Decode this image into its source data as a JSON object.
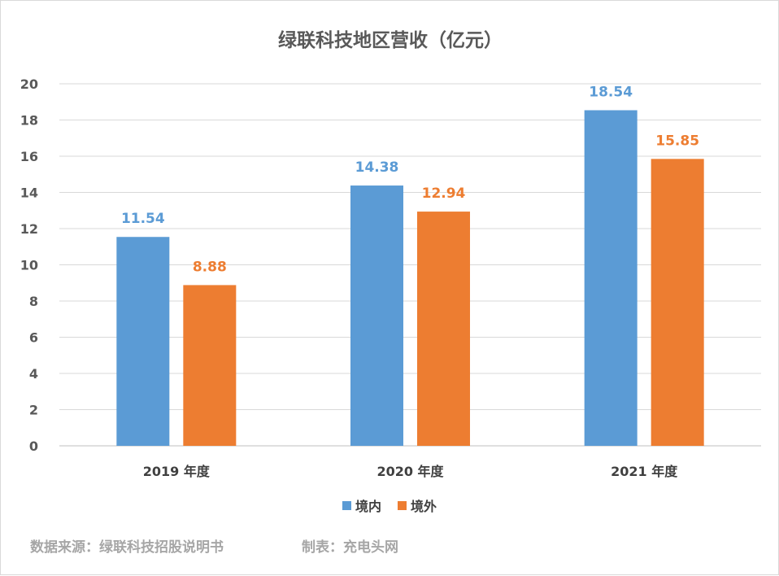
{
  "chart_data": {
    "type": "bar",
    "title": "绿联科技地区营收（亿元）",
    "categories": [
      "2019 年度",
      "2020 年度",
      "2021 年度"
    ],
    "series": [
      {
        "name": "境内",
        "values": [
          11.54,
          14.38,
          18.54
        ],
        "labels": [
          "11.54",
          "14.38",
          "18.54"
        ],
        "color": "#5b9bd5",
        "label_color": "#5b9bd5"
      },
      {
        "name": "境外",
        "values": [
          8.88,
          12.94,
          15.85
        ],
        "labels": [
          "8.88",
          "12.94",
          "15.85"
        ],
        "color": "#ed7d31",
        "label_color": "#ed7d31"
      }
    ],
    "yticks": [
      "0",
      "2",
      "4",
      "6",
      "8",
      "10",
      "12",
      "14",
      "16",
      "18",
      "20"
    ],
    "ylim": [
      0,
      20
    ],
    "grid": true,
    "legend_position": "bottom"
  },
  "footer": {
    "source": "数据来源：绿联科技招股说明书",
    "maker": "制表：充电头网"
  }
}
